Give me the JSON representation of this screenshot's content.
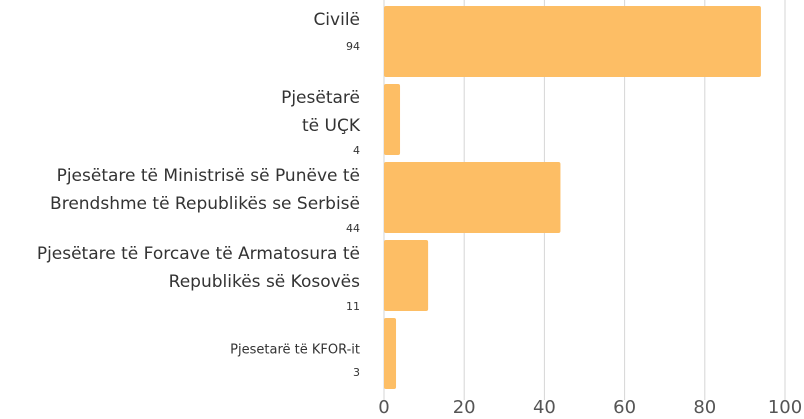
{
  "chart_data": {
    "type": "bar",
    "orientation": "horizontal",
    "categories": [
      [
        "Civilë"
      ],
      [
        "Pjesëtarë",
        "të UÇK"
      ],
      [
        "Pjesëtare të Ministrisë së Punëve të",
        "Brendshme të Republikës se Serbisë"
      ],
      [
        "Pjesëtare të Forcave të Armatosura të",
        "Republikës së Kosovës"
      ],
      [
        "Pjesetarë të KFOR-it"
      ]
    ],
    "values": [
      94,
      4,
      44,
      11,
      3
    ],
    "color": "#fdbe65",
    "xlim": [
      0,
      100
    ],
    "xticks": [
      0,
      20,
      40,
      60,
      80,
      100
    ],
    "grid": true
  }
}
